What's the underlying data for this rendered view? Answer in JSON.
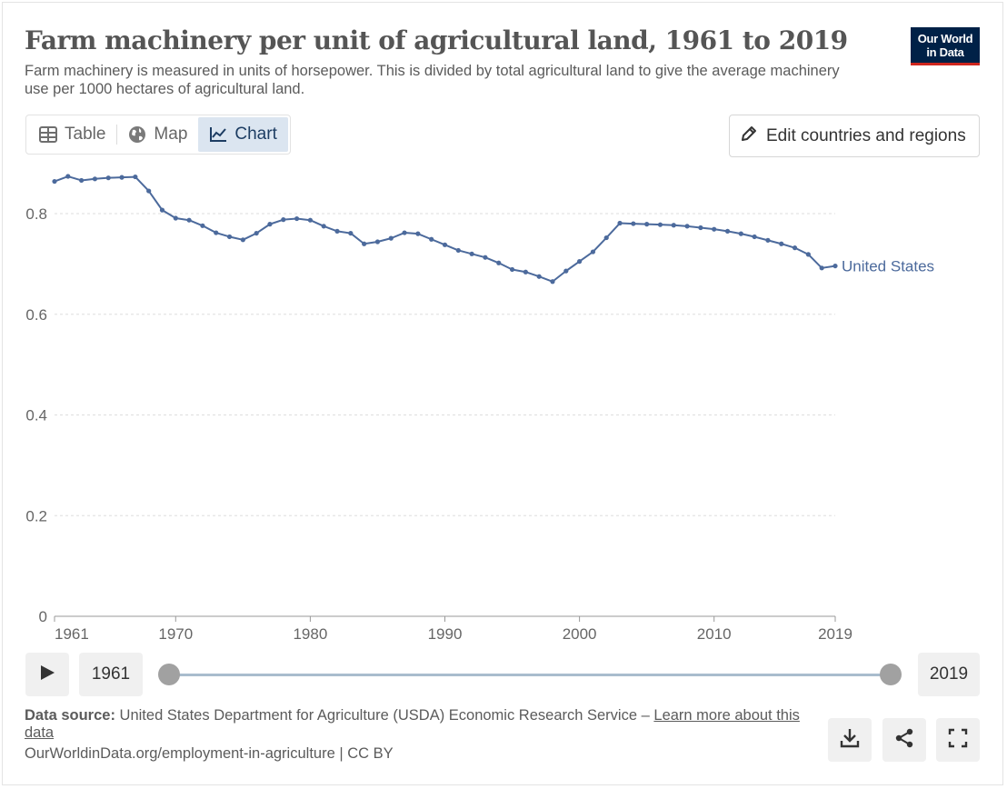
{
  "header": {
    "title": "Farm machinery per unit of agricultural land, 1961 to 2019",
    "subtitle": "Farm machinery is measured in units of horsepower. This is divided by total agricultural land to give the average machinery use per 1000 hectares of agricultural land.",
    "logo_line1": "Our World",
    "logo_line2": "in Data",
    "logo_color": "#002147",
    "logo_accent": "#ce261e"
  },
  "tabs": [
    {
      "label": "Table",
      "icon": "table-icon",
      "active": false
    },
    {
      "label": "Map",
      "icon": "globe-icon",
      "active": false
    },
    {
      "label": "Chart",
      "icon": "line-chart-icon",
      "active": true
    }
  ],
  "edit_button": {
    "label": "Edit countries and regions",
    "icon": "pencil-icon"
  },
  "chart_data": {
    "type": "line",
    "title": "Farm machinery per unit of agricultural land, 1961 to 2019",
    "xlabel": "",
    "ylabel": "",
    "xlim": [
      1961,
      2019
    ],
    "ylim": [
      0,
      0.8
    ],
    "y_ticks": [
      0,
      0.2,
      0.4,
      0.6,
      0.8
    ],
    "x_ticks": [
      1961,
      1970,
      1980,
      1990,
      2000,
      2010,
      2019
    ],
    "grid": "horizontal dashed",
    "legend": "end-of-line label",
    "series": [
      {
        "name": "United States",
        "color": "#4c6a9c",
        "x": [
          1961,
          1962,
          1963,
          1964,
          1965,
          1966,
          1967,
          1968,
          1969,
          1970,
          1971,
          1972,
          1973,
          1974,
          1975,
          1976,
          1977,
          1978,
          1979,
          1980,
          1981,
          1982,
          1983,
          1984,
          1985,
          1986,
          1987,
          1988,
          1989,
          1990,
          1991,
          1992,
          1993,
          1994,
          1995,
          1996,
          1997,
          1998,
          1999,
          2000,
          2001,
          2002,
          2003,
          2004,
          2005,
          2006,
          2007,
          2008,
          2009,
          2010,
          2011,
          2012,
          2013,
          2014,
          2015,
          2016,
          2017,
          2018,
          2019
        ],
        "values": [
          0.864,
          0.874,
          0.866,
          0.869,
          0.871,
          0.872,
          0.873,
          0.845,
          0.807,
          0.791,
          0.787,
          0.776,
          0.762,
          0.754,
          0.748,
          0.761,
          0.779,
          0.788,
          0.79,
          0.787,
          0.775,
          0.765,
          0.761,
          0.74,
          0.744,
          0.751,
          0.762,
          0.76,
          0.749,
          0.738,
          0.727,
          0.72,
          0.713,
          0.702,
          0.689,
          0.684,
          0.675,
          0.665,
          0.686,
          0.705,
          0.724,
          0.752,
          0.781,
          0.78,
          0.779,
          0.778,
          0.777,
          0.775,
          0.772,
          0.769,
          0.765,
          0.76,
          0.754,
          0.747,
          0.74,
          0.732,
          0.719,
          0.692,
          0.696
        ]
      }
    ]
  },
  "timeline": {
    "start_label": "1961",
    "end_label": "2019",
    "play_icon": "play-icon"
  },
  "footer": {
    "source_label": "Data source:",
    "source_text": "United States Department for Agriculture (USDA) Economic Research Service –",
    "learn_more": "Learn more about this data",
    "url_license": "OurWorldinData.org/employment-in-agriculture | CC BY"
  },
  "actions": [
    {
      "name": "download-icon"
    },
    {
      "name": "share-icon"
    },
    {
      "name": "fullscreen-icon"
    }
  ]
}
